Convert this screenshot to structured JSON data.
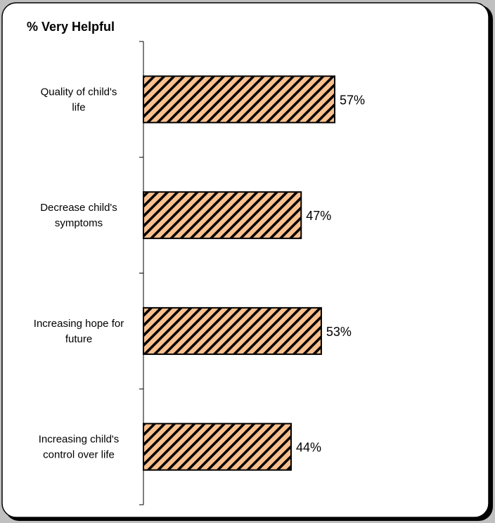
{
  "chart_data": {
    "type": "bar",
    "orientation": "horizontal",
    "title": "% Very Helpful",
    "categories": [
      "Quality of child's life",
      "Decrease child's symptoms",
      "Increasing hope for future",
      "Increasing child's control over life"
    ],
    "category_label_lines": [
      [
        "Quality of child's",
        "life"
      ],
      [
        "Decrease child's",
        "symptoms"
      ],
      [
        "Increasing hope for",
        "future"
      ],
      [
        "Increasing child's",
        "control over life"
      ]
    ],
    "values": [
      57,
      47,
      53,
      44
    ],
    "value_labels": [
      "57%",
      "47%",
      "53%",
      "44%"
    ],
    "xlim": [
      0,
      100
    ],
    "grid": false,
    "legend": "none",
    "bar_fill": "#f9c08e",
    "bar_pattern": "diagonal-hatch",
    "bar_stroke": "#000000",
    "panel_background": "#ffffff",
    "page_background": "#c0c0c0"
  }
}
